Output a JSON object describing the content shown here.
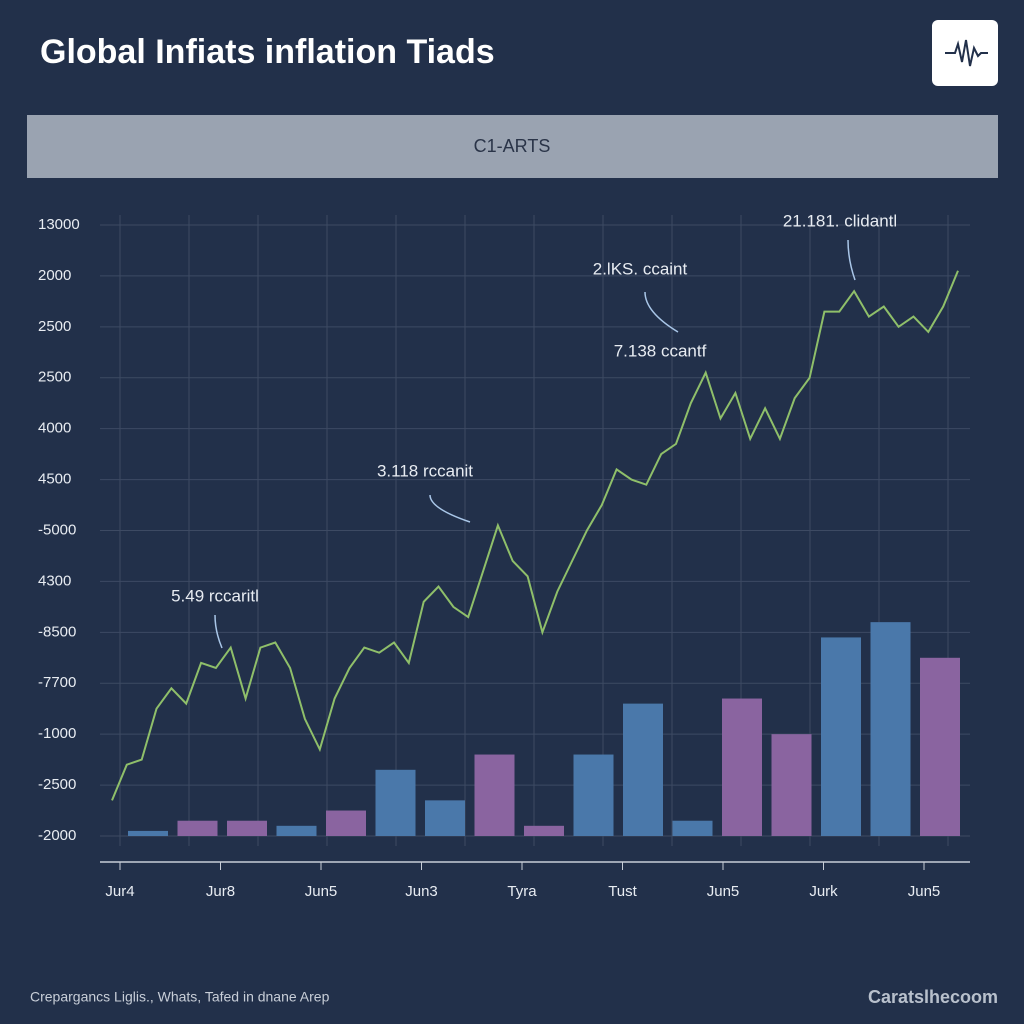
{
  "chart_data": {
    "type": "combo",
    "title": "Global Infiats inflation Tiads",
    "subtitle": "C1-ARTS",
    "footnote": "Crepargancs Liglis., Whats, Tafed in dnane Arep",
    "source": "Caratslhecoom",
    "ylim": [
      0,
      12
    ],
    "yticks": [
      {
        "value": 0,
        "label": "-2000"
      },
      {
        "value": 1,
        "label": "-2500"
      },
      {
        "value": 2,
        "label": "-1000"
      },
      {
        "value": 3,
        "label": "-7700"
      },
      {
        "value": 4,
        "label": "-8500"
      },
      {
        "value": 5,
        "label": "4300"
      },
      {
        "value": 6,
        "label": "-5000"
      },
      {
        "value": 7,
        "label": "4500"
      },
      {
        "value": 8,
        "label": "4000"
      },
      {
        "value": 9,
        "label": "2500"
      },
      {
        "value": 10,
        "label": "2500"
      },
      {
        "value": 11,
        "label": "2000"
      },
      {
        "value": 12,
        "label": "13000"
      }
    ],
    "grid": true,
    "x_labels": [
      "Jur4",
      "Jur8",
      "Jun5",
      "Jun3",
      "Tyra",
      "Tust",
      "Jun5",
      "Jurk",
      "Jun5"
    ],
    "series": [
      {
        "type": "bar",
        "values": [
          0.1,
          0.3,
          0.3,
          0.2,
          0.5,
          1.3,
          0.7,
          1.6,
          0.2,
          1.6,
          2.6,
          0.3,
          2.7,
          2.0,
          3.9,
          4.2,
          3.5
        ],
        "colors": [
          "#4a78aa",
          "#8a64a0",
          "#8a64a0",
          "#4a78aa",
          "#8a64a0",
          "#4a78aa",
          "#4a78aa",
          "#8a64a0",
          "#8a64a0",
          "#4a78aa",
          "#4a78aa",
          "#4a78aa",
          "#8a64a0",
          "#8a64a0",
          "#4a78aa",
          "#4a78aa",
          "#8a64a0"
        ]
      },
      {
        "type": "line",
        "color": "#8fbf6a",
        "values": [
          0.7,
          1.4,
          1.5,
          2.5,
          2.9,
          2.6,
          3.4,
          3.3,
          3.7,
          2.7,
          3.7,
          3.8,
          3.3,
          2.3,
          1.7,
          2.7,
          3.3,
          3.7,
          3.6,
          3.8,
          3.4,
          4.6,
          4.9,
          4.5,
          4.3,
          5.2,
          6.1,
          5.4,
          5.1,
          4.0,
          4.8,
          5.4,
          6.0,
          6.5,
          7.2,
          7.0,
          6.9,
          7.5,
          7.7,
          8.5,
          9.1,
          8.2,
          8.7,
          7.8,
          8.4,
          7.8,
          8.6,
          9.0,
          10.3,
          10.3,
          10.7,
          10.2,
          10.4,
          10.0,
          10.2,
          9.9,
          10.4,
          11.1
        ]
      }
    ],
    "annotations": [
      "5.49 rccaritl",
      "3.118 rccanit",
      "2.lKS. ccaint",
      "7.138 ccantf",
      "21.181. clidantl"
    ]
  }
}
